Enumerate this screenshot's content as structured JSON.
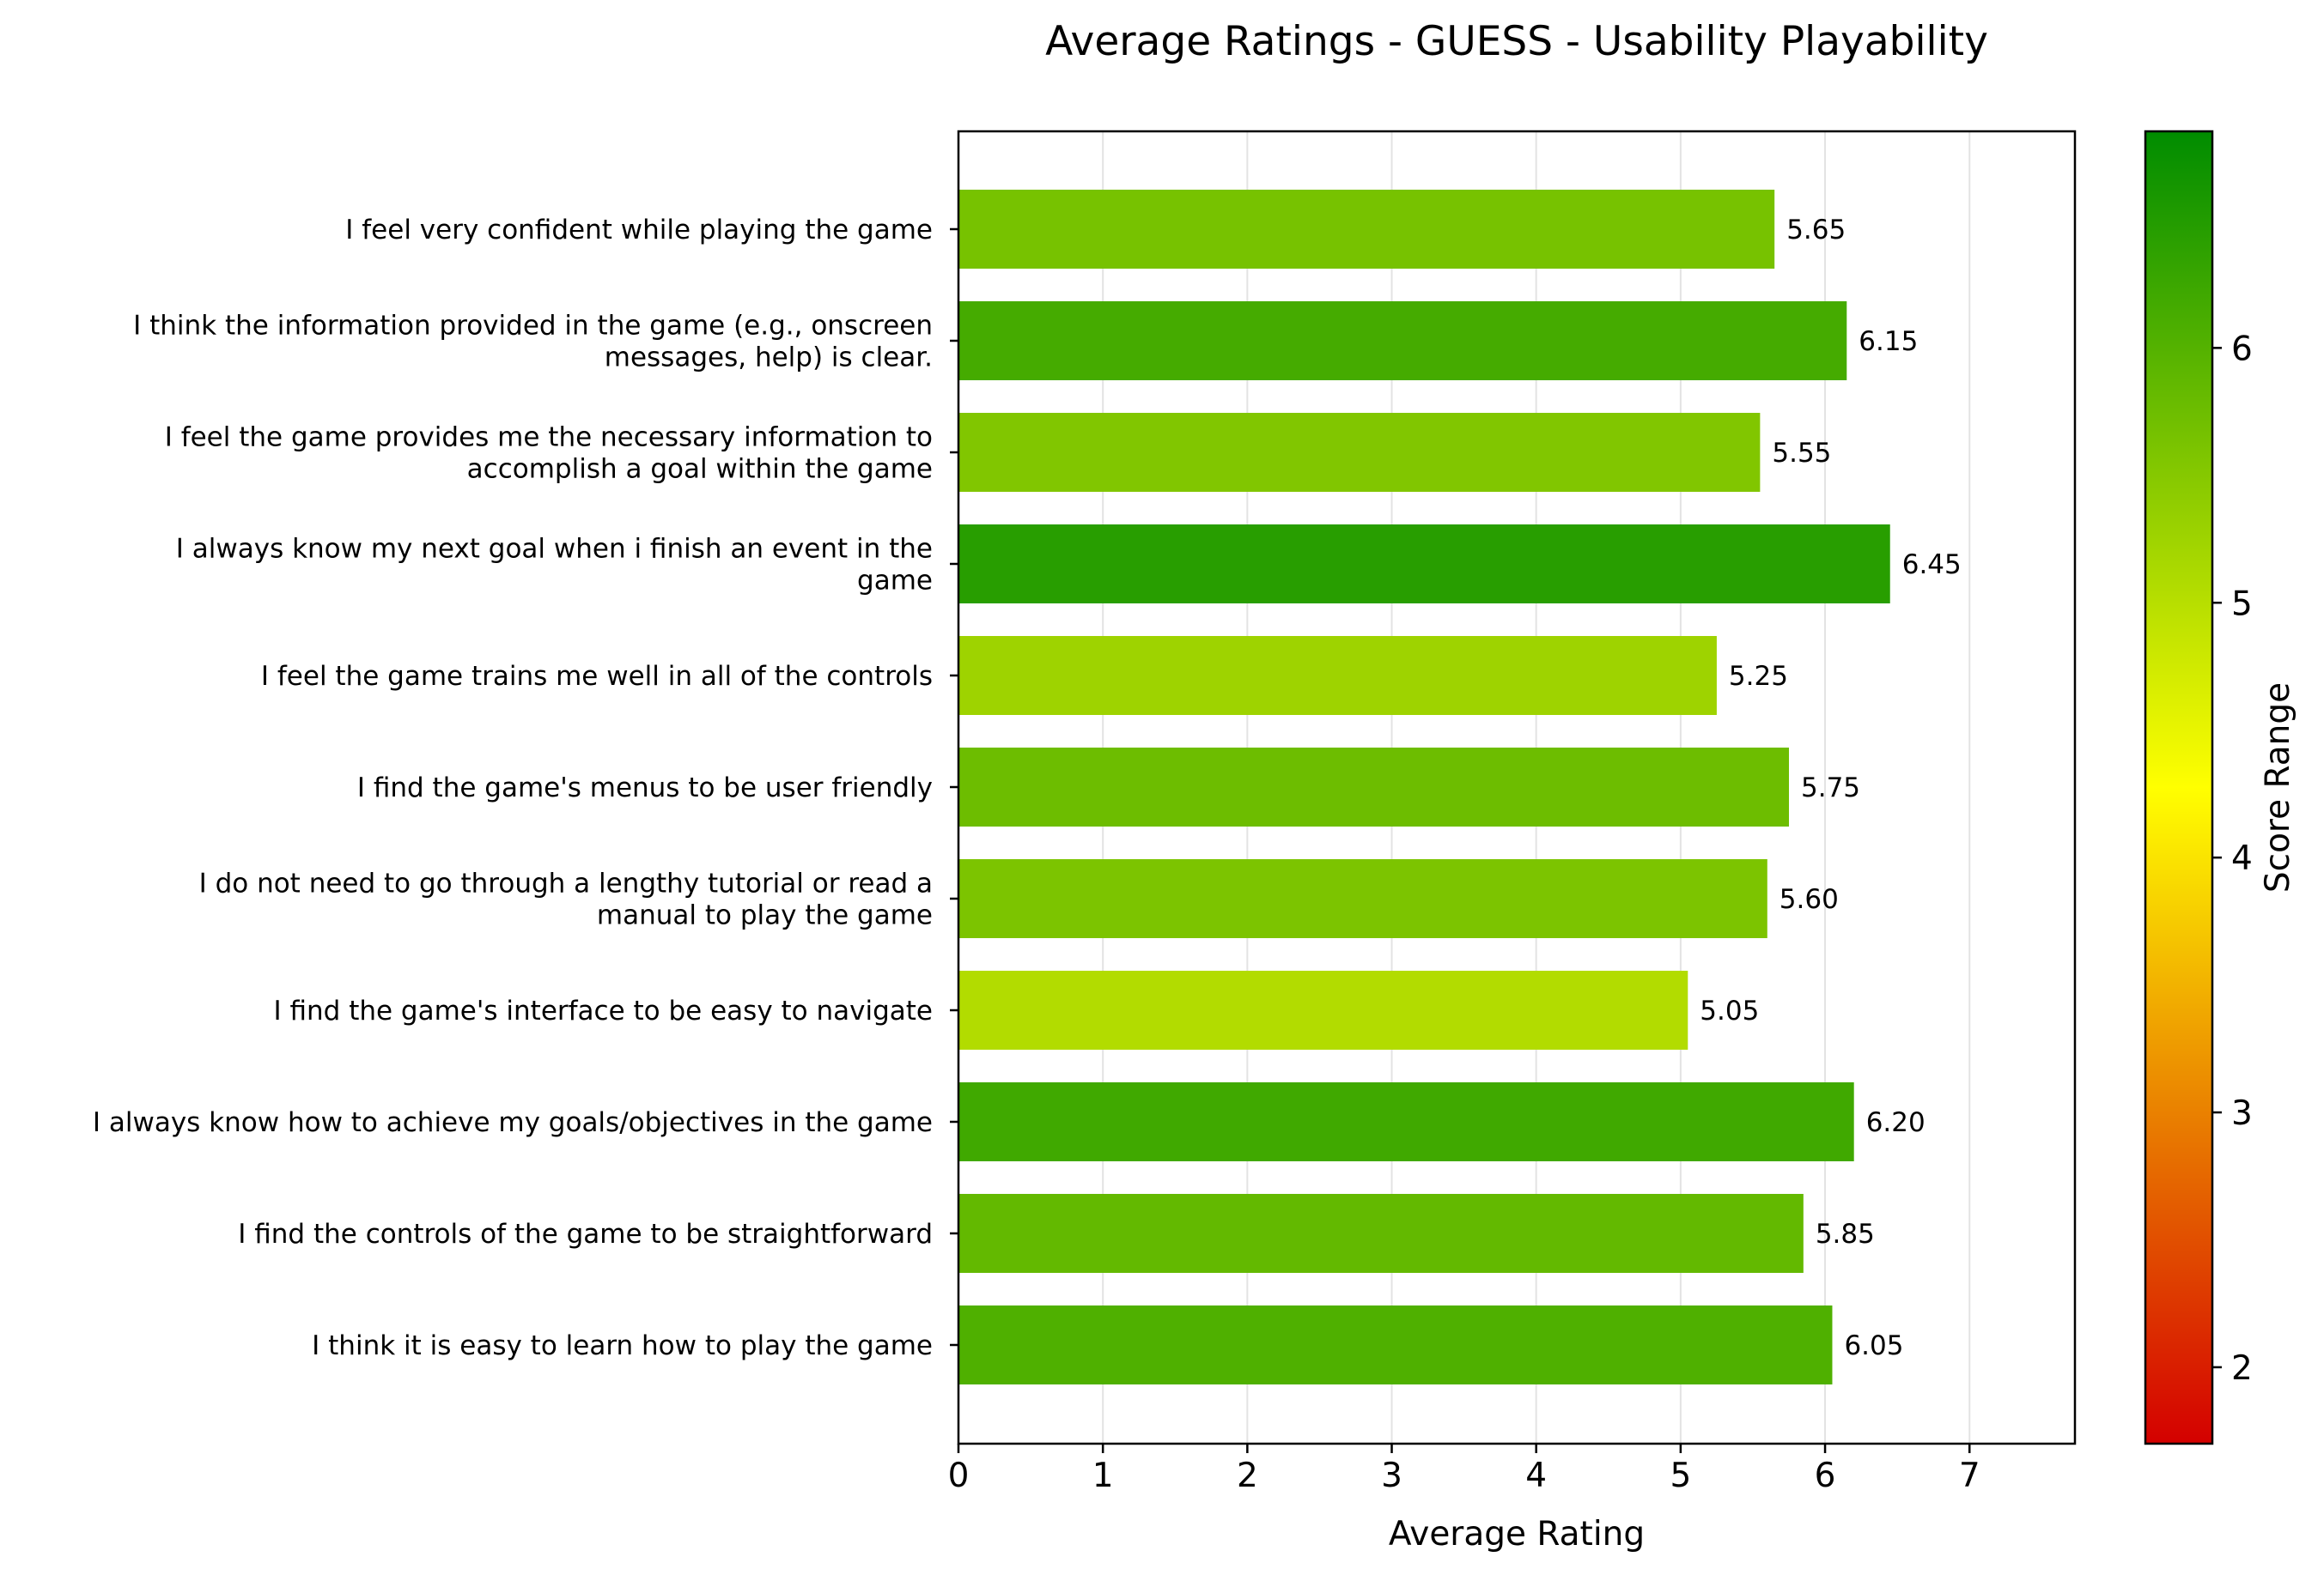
{
  "chart_data": {
    "type": "bar",
    "orientation": "horizontal",
    "title": "Average Ratings - GUESS - Usability Playability",
    "xlabel": "Average Rating",
    "ylabel": "",
    "xlim": [
      0,
      7.73
    ],
    "xticks": [
      0,
      1,
      2,
      3,
      4,
      5,
      6,
      7
    ],
    "grid": "vertical lines",
    "categories": [
      [
        "I feel very confident while playing the game"
      ],
      [
        "I think the information provided in the game (e.g., onscreen",
        "messages, help) is clear."
      ],
      [
        "I feel the game provides me the necessary information to",
        "accomplish a goal within the game"
      ],
      [
        "I always know my next goal when i finish an event in the",
        "game"
      ],
      [
        "I feel the game trains me well in all of the controls"
      ],
      [
        "I find the game's menus to be user friendly"
      ],
      [
        "I do not need to go through a lengthy tutorial or read a",
        "manual to play the game"
      ],
      [
        "I find the game's interface to be easy to navigate"
      ],
      [
        "I always know how to achieve my goals/objectives in the game"
      ],
      [
        "I find the controls of the game to be straightforward"
      ],
      [
        "I think it is easy to learn how to play the game"
      ]
    ],
    "values": [
      5.65,
      6.15,
      5.55,
      6.45,
      5.25,
      5.75,
      5.6,
      5.05,
      6.2,
      5.85,
      6.05
    ],
    "value_labels": [
      "5.65",
      "6.15",
      "5.55",
      "6.45",
      "5.25",
      "5.75",
      "5.60",
      "5.05",
      "6.20",
      "5.85",
      "6.05"
    ],
    "colorbar": {
      "label": "Score Range",
      "range": [
        1.7,
        6.85
      ],
      "ticks": [
        2,
        3,
        4,
        5,
        6
      ],
      "colormap": [
        "#d40000",
        "#ffff00",
        "#008c00"
      ]
    }
  }
}
